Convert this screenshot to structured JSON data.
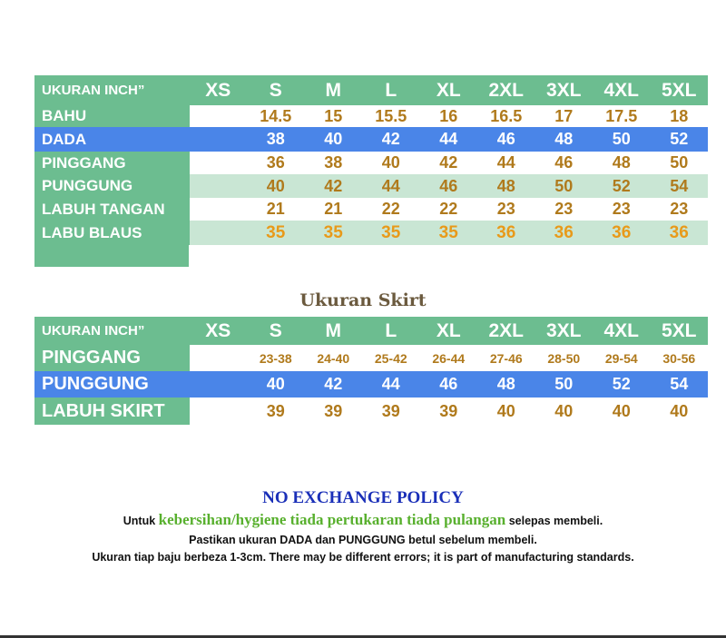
{
  "colors": {
    "green": "#6cbd90",
    "light_green": "#c9e6d4",
    "blue": "#4a85e8",
    "gold": "#b07a1c",
    "orange": "#e89a1a",
    "navy": "#1a2fb8",
    "policy_green": "#58b02e"
  },
  "table1": {
    "header": [
      "UKURAN INCH”",
      "XS",
      "S",
      "M",
      "L",
      "XL",
      "2XL",
      "3XL",
      "4XL",
      "5XL"
    ],
    "rows": [
      {
        "label": "BAHU",
        "values": [
          "",
          "14.5",
          "15",
          "15.5",
          "16",
          "16.5",
          "17",
          "17.5",
          "18"
        ]
      },
      {
        "label": "DADA",
        "values": [
          "",
          "38",
          "40",
          "42",
          "44",
          "46",
          "48",
          "50",
          "52"
        ]
      },
      {
        "label": "PINGGANG",
        "values": [
          "",
          "36",
          "38",
          "40",
          "42",
          "44",
          "46",
          "48",
          "50"
        ]
      },
      {
        "label": "PUNGGUNG",
        "values": [
          "",
          "40",
          "42",
          "44",
          "46",
          "48",
          "50",
          "52",
          "54"
        ]
      },
      {
        "label": "LABUH TANGAN",
        "values": [
          "",
          "21",
          "21",
          "22",
          "22",
          "23",
          "23",
          "23",
          "23"
        ]
      },
      {
        "label": "LABU BLAUS",
        "values": [
          "",
          "35",
          "35",
          "35",
          "35",
          "36",
          "36",
          "36",
          "36"
        ]
      }
    ]
  },
  "skirt_title": "Ukuran Skirt",
  "table2": {
    "header": [
      "UKURAN INCH”",
      "XS",
      "S",
      "M",
      "L",
      "XL",
      "2XL",
      "3XL",
      "4XL",
      "5XL"
    ],
    "rows": [
      {
        "label": "PINGGANG",
        "values": [
          "",
          "23-38",
          "24-40",
          "25-42",
          "26-44",
          "27-46",
          "28-50",
          "29-54",
          "30-56"
        ]
      },
      {
        "label": "PUNGGUNG",
        "values": [
          "",
          "40",
          "42",
          "44",
          "46",
          "48",
          "50",
          "52",
          "54"
        ]
      },
      {
        "label": "LABUH SKIRT",
        "values": [
          "",
          "39",
          "39",
          "39",
          "39",
          "40",
          "40",
          "40",
          "40"
        ]
      }
    ]
  },
  "policy": {
    "title": "NO EXCHANGE POLICY",
    "line1_pre": "Untuk ",
    "line1_em": "kebersihan/hygiene tiada pertukaran tiada pulangan",
    "line1_post": " selepas membeli.",
    "line2": "Pastikan ukuran DADA dan PUNGGUNG betul sebelum membeli.",
    "line3": "Ukuran tiap baju berbeza 1-3cm. There may be different errors; it is part of manufacturing standards."
  }
}
